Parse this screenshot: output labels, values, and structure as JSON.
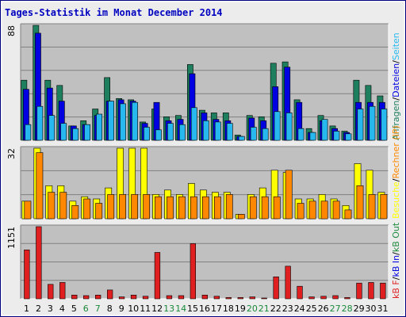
{
  "title": "Tages-Statistik im Monat December 2014",
  "colors": {
    "frame": "#000080",
    "bg": "#ececec",
    "plot": "#c0c0c0",
    "grid": "#808080",
    "title": "#0000c0",
    "anfragen": "#1e7f5e",
    "dateien": "#0000e0",
    "seiten": "#28b8f0",
    "rechner": "#ff8800",
    "besuche": "#ffff00",
    "kb": "#e02020",
    "weekend": "#1a8a3a",
    "weekday": "#000000"
  },
  "legend": {
    "upper": [
      {
        "text": "Anfragen",
        "color": "#1e7f5e"
      },
      {
        "text": "/",
        "color": "#000000"
      },
      {
        "text": "Dateien",
        "color": "#0000e0"
      },
      {
        "text": "/",
        "color": "#000000"
      },
      {
        "text": "Seiten",
        "color": "#28b8f0"
      }
    ],
    "middle": [
      {
        "text": "Besuche",
        "color": "#ffff00"
      },
      {
        "text": "/",
        "color": "#000000"
      },
      {
        "text": "Rechner (IP)",
        "color": "#ff8800"
      }
    ],
    "lower": [
      {
        "text": "kB F",
        "color": "#e02020"
      },
      {
        "text": "/",
        "color": "#000000"
      },
      {
        "text": "kB In",
        "color": "#0000e0"
      },
      {
        "text": "/",
        "color": "#000000"
      },
      {
        "text": "kB Out",
        "color": "#1a8a3a"
      }
    ]
  },
  "chart_data": {
    "type": "bar",
    "title": "Tages-Statistik im Monat December 2014",
    "categories": [
      "1",
      "2",
      "3",
      "4",
      "5",
      "6",
      "7",
      "8",
      "9",
      "10",
      "11",
      "12",
      "13",
      "14",
      "15",
      "16",
      "17",
      "18",
      "19",
      "20",
      "21",
      "22",
      "23",
      "24",
      "25",
      "26",
      "27",
      "28",
      "29",
      "30",
      "31"
    ],
    "weekend_days": [
      "6",
      "7",
      "13",
      "14",
      "20",
      "21",
      "27",
      "28"
    ],
    "panels": [
      {
        "max_label": "88",
        "ylim": [
          0,
          88
        ],
        "series": [
          {
            "name": "Anfragen",
            "values": [
              46,
              88,
              46,
              42,
              11,
              15,
              24,
              48,
              32,
              31,
              14,
              24,
              18,
              19,
              58,
              23,
              21,
              21,
              4,
              19,
              18,
              59,
              60,
              31,
              9,
              19,
              11,
              7,
              46,
              42,
              34
            ]
          },
          {
            "name": "Dateien",
            "values": [
              39,
              82,
              40,
              30,
              11,
              12,
              19,
              30,
              31,
              30,
              13,
              29,
              15,
              16,
              51,
              21,
              16,
              15,
              3,
              17,
              15,
              41,
              56,
              29,
              6,
              15,
              9,
              6,
              29,
              29,
              29
            ]
          },
          {
            "name": "Seiten",
            "values": [
              12,
              26,
              19,
              13,
              9,
              12,
              20,
              30,
              28,
              29,
              10,
              8,
              13,
              12,
              25,
              15,
              14,
              13,
              3,
              10,
              9,
              22,
              21,
              9,
              6,
              16,
              7,
              5,
              24,
              26,
              24
            ]
          }
        ]
      },
      {
        "max_label": "32",
        "ylim": [
          0,
          32
        ],
        "series": [
          {
            "name": "Besuche",
            "values": [
              8,
              32,
              15,
              15,
              8,
              10,
              9,
              14,
              32,
              32,
              32,
              11,
              13,
              11,
              16,
              13,
              12,
              12,
              2,
              11,
              14,
              22,
              21,
              9,
              9,
              11,
              9,
              6,
              25,
              22,
              12
            ]
          },
          {
            "name": "Rechner (IP)",
            "values": [
              8,
              30,
              12,
              12,
              6,
              9,
              7,
              11,
              11,
              11,
              11,
              10,
              10,
              10,
              10,
              10,
              10,
              11,
              2,
              10,
              10,
              10,
              22,
              7,
              8,
              8,
              8,
              4,
              15,
              11,
              11
            ]
          }
        ]
      },
      {
        "max_label": "1151",
        "ylim": [
          0,
          1151
        ],
        "series": [
          {
            "name": "kB F",
            "values": [
              780,
              1151,
              230,
              260,
              60,
              50,
              60,
              140,
              30,
              60,
              40,
              740,
              50,
              50,
              880,
              60,
              40,
              20,
              20,
              30,
              10,
              350,
              520,
              200,
              30,
              40,
              50,
              20,
              250,
              260,
              250
            ]
          }
        ]
      }
    ]
  }
}
